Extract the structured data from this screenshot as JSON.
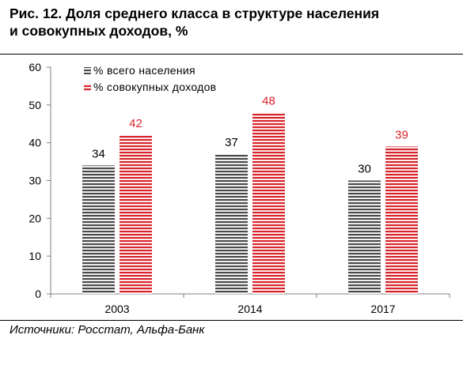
{
  "page": {
    "title_line1": "Рис. 12. Доля среднего класса в структуре населения",
    "title_line2": "и совокупных доходов, %",
    "source": "Источники: Росстат, Альфа-Банк"
  },
  "colors": {
    "population": "#4a4a4a",
    "income": "#d8232a",
    "axis": "#7f7f7f"
  },
  "chart_data": {
    "type": "bar",
    "title": "",
    "xlabel": "",
    "ylabel": "",
    "categories": [
      "2003",
      "2014",
      "2017"
    ],
    "ylim": [
      0,
      60
    ],
    "yticks": [
      0,
      10,
      20,
      30,
      40,
      50,
      60
    ],
    "grid": false,
    "legend_position": "top-left",
    "series": [
      {
        "name": "% всего населения",
        "values": [
          34,
          37,
          30
        ],
        "color": "#4a4a4a",
        "label_color": "#000000"
      },
      {
        "name": "% совокупных доходов",
        "values": [
          42,
          48,
          39
        ],
        "color": "#d8232a",
        "label_color": "#d8232a"
      }
    ]
  }
}
